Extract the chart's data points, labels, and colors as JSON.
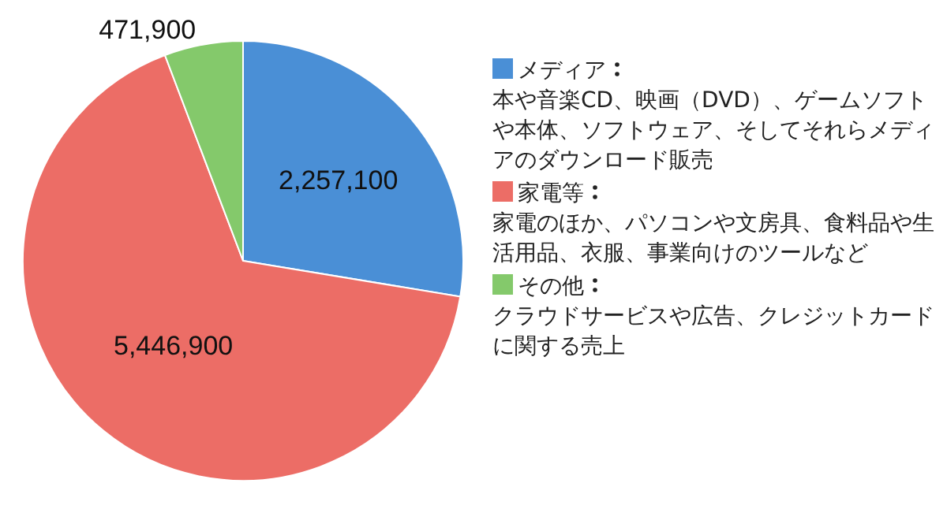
{
  "chart_data": {
    "type": "pie",
    "categories": [
      "メディア",
      "家電等",
      "その他"
    ],
    "values": [
      2257100,
      5446900,
      471900
    ],
    "colors": [
      "#4a8fd6",
      "#ec6d66",
      "#84c96b"
    ],
    "value_labels": [
      "2,257,100",
      "5,446,900",
      "471,900"
    ],
    "legend": "right",
    "annotations": [
      "本や音楽CD、映画（DVD）、ゲームソフトや本体、ソフトウェア、そしてそれらメディアのダウンロード販売",
      "家電のほか、パソコンや文房具、食料品や生活用品、衣服、事業向けのツールなど",
      "クラウドサービスや広告、クレジットカードに関する売上"
    ]
  }
}
